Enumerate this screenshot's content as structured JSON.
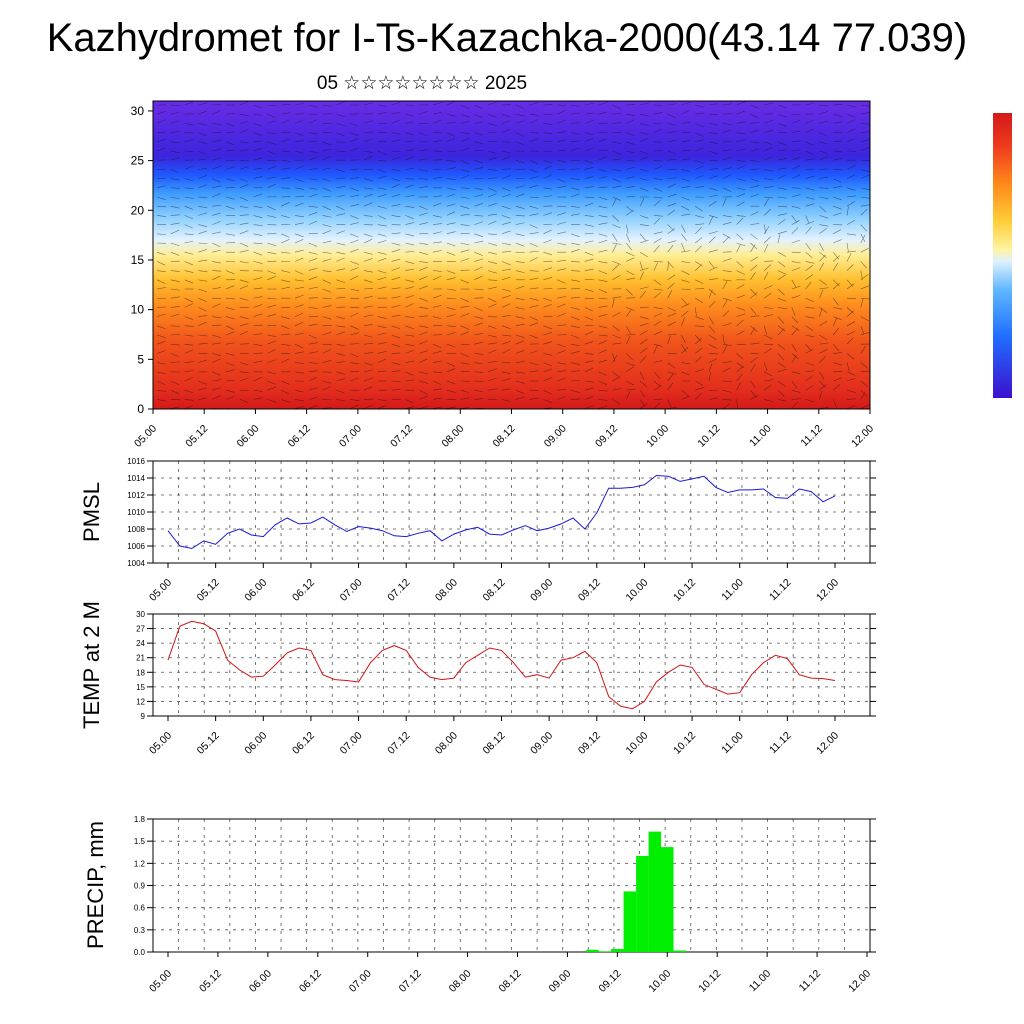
{
  "title": "Kazhydromet for I-Ts-Kazachka-2000(43.14 77.039)",
  "subtitle": "05 ☆☆☆☆☆☆☆☆ 2025",
  "colors": {
    "pmsl_line": "#1a1ad6",
    "temp_line": "#d01414",
    "precip_bar": "#00ee00",
    "grid": "#555555"
  },
  "chart_data": [
    {
      "type": "heatmap",
      "name_hint": "vertical cross-section",
      "xlabel": "",
      "ylabel": "",
      "ylim": [
        0,
        31
      ],
      "yticks": [
        0,
        5,
        10,
        15,
        20,
        25,
        30
      ],
      "xticks": [
        "05.00",
        "05.12",
        "06.00",
        "06.12",
        "07.00",
        "07.12",
        "08.00",
        "08.12",
        "09.00",
        "09.12",
        "10.00",
        "10.12",
        "11.00",
        "11.12",
        "12.00"
      ],
      "colorbar": "rainbow (purple low to red high)",
      "colorbar_colors": [
        "#3b10cf",
        "#2070ff",
        "#5fb8ff",
        "#dff1ff",
        "#fff3a3",
        "#ffce38",
        "#ff8a1a",
        "#ef3d1e",
        "#d21818"
      ]
    },
    {
      "type": "line",
      "ylabel": "PMSL",
      "ylim": [
        1004,
        1016
      ],
      "yticks": [
        1004,
        1006,
        1008,
        1010,
        1012,
        1014,
        1016
      ],
      "xticks": [
        "05.00",
        "05.12",
        "06.00",
        "06.12",
        "07.00",
        "07.12",
        "08.00",
        "08.12",
        "09.00",
        "09.12",
        "10.00",
        "10.12",
        "11.00",
        "11.12",
        "12.00"
      ],
      "x_step_hours": 3,
      "values": [
        1007.8,
        1006.0,
        1005.7,
        1006.6,
        1006.2,
        1007.5,
        1008.0,
        1007.3,
        1007.1,
        1008.5,
        1009.3,
        1008.6,
        1008.7,
        1009.4,
        1008.5,
        1007.7,
        1008.3,
        1008.1,
        1007.8,
        1007.2,
        1007.1,
        1007.5,
        1007.8,
        1006.6,
        1007.4,
        1007.9,
        1008.2,
        1007.4,
        1007.3,
        1007.9,
        1008.4,
        1007.8,
        1008.1,
        1008.6,
        1009.3,
        1008.0,
        1009.9,
        1012.8,
        1012.8,
        1012.9,
        1013.2,
        1014.3,
        1014.2,
        1013.6,
        1013.9,
        1014.2,
        1012.9,
        1012.3,
        1012.6,
        1012.6,
        1012.7,
        1011.7,
        1011.6,
        1012.7,
        1012.4,
        1011.2,
        1011.9
      ]
    },
    {
      "type": "line",
      "ylabel": "TEMP at 2 M",
      "ylim": [
        9,
        30
      ],
      "yticks": [
        9,
        12,
        15,
        18,
        21,
        24,
        27,
        30
      ],
      "xticks": [
        "05.00",
        "05.12",
        "06.00",
        "06.12",
        "07.00",
        "07.12",
        "08.00",
        "08.12",
        "09.00",
        "09.12",
        "10.00",
        "10.12",
        "11.00",
        "11.12",
        "12.00"
      ],
      "x_step_hours": 3,
      "values": [
        20.5,
        27.5,
        28.5,
        28.0,
        26.5,
        20.5,
        18.5,
        17.0,
        17.2,
        19.5,
        22.0,
        23.0,
        22.5,
        17.5,
        16.5,
        16.3,
        16.0,
        20.0,
        22.5,
        23.5,
        22.5,
        19.0,
        17.0,
        16.5,
        16.8,
        20.0,
        21.5,
        23.0,
        22.5,
        20.0,
        17.0,
        17.5,
        16.8,
        20.5,
        21.0,
        22.3,
        20.0,
        13.0,
        11.0,
        10.5,
        12.0,
        16.0,
        18.0,
        19.5,
        19.0,
        15.5,
        14.5,
        13.5,
        13.8,
        17.5,
        20.0,
        21.5,
        20.8,
        17.5,
        16.8,
        16.7,
        16.3
      ]
    },
    {
      "type": "bar",
      "ylabel": "PRECIP, mm",
      "ylim": [
        0,
        1.8
      ],
      "yticks": [
        "0.0",
        "0.3",
        "0.6",
        "0.9",
        "1.2",
        "1.5",
        "1.8"
      ],
      "xticks": [
        "05.00",
        "05.12",
        "06.00",
        "06.12",
        "07.00",
        "07.12",
        "08.00",
        "08.12",
        "09.00",
        "09.12",
        "10.00",
        "10.12",
        "11.00",
        "11.12",
        "12.00"
      ],
      "x_step_hours": 3,
      "values": [
        0,
        0,
        0,
        0,
        0,
        0,
        0,
        0,
        0,
        0,
        0,
        0,
        0,
        0,
        0,
        0,
        0,
        0,
        0,
        0,
        0,
        0,
        0,
        0,
        0,
        0,
        0,
        0,
        0,
        0,
        0,
        0,
        0,
        0,
        0.03,
        0.01,
        0.04,
        0.82,
        1.3,
        1.63,
        1.42,
        0.02,
        0,
        0,
        0,
        0,
        0,
        0,
        0,
        0,
        0,
        0,
        0,
        0,
        0,
        0,
        0
      ]
    }
  ]
}
